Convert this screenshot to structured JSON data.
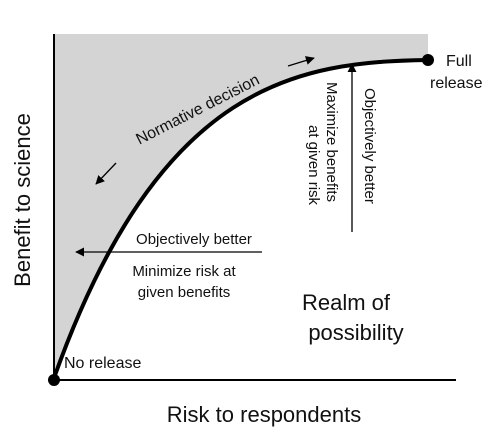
{
  "axes": {
    "x_label": "Risk to respondents",
    "y_label": "Benefit to science"
  },
  "points": {
    "origin_label": "No release",
    "end_label_line1": "Full",
    "end_label_line2": "release"
  },
  "annotations": {
    "normative": "Normative decision",
    "left_arrow_above": "Objectively better",
    "left_arrow_below_line1": "Minimize risk at",
    "left_arrow_below_line2": "given benefits",
    "up_arrow_right": "Objectively better",
    "up_arrow_left_line1": "Maximize benefits",
    "up_arrow_left_line2": "at given risk",
    "realm_line1": "Realm of",
    "realm_line2": "possibility"
  },
  "colors": {
    "shaded_region": "#d4d4d4",
    "ink": "#000000"
  }
}
